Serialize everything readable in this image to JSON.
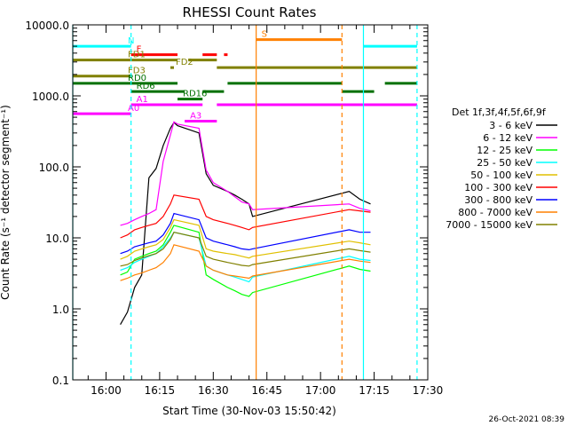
{
  "chart_data": {
    "type": "line",
    "title": "RHESSI Count Rates",
    "xlabel": "Start Time (30-Nov-03 15:50:42)",
    "ylabel": "Count Rate (s⁻¹ detector segment⁻¹)",
    "yscale": "log",
    "ylim": [
      0.1,
      10000
    ],
    "xlim": [
      "15:50:42",
      "17:30:00"
    ],
    "x_ticks": [
      "16:00",
      "16:15",
      "16:30",
      "16:45",
      "17:00",
      "17:15",
      "17:30"
    ],
    "y_ticks": [
      "0.1",
      "1.0",
      "10.0",
      "100.0",
      "1000.0",
      "10000.0"
    ],
    "grid": false,
    "legend_title": "Det 1f,3f,4f,5f,6f,9f",
    "legend_position": "right",
    "series": [
      {
        "name": "3 - 6 keV",
        "color": "#000000",
        "x": [
          "16:04",
          "16:06",
          "16:08",
          "16:10",
          "16:12",
          "16:14",
          "16:16",
          "16:18",
          "16:19",
          "16:20",
          "16:26",
          "16:28",
          "16:30",
          "16:34",
          "16:36",
          "16:38",
          "16:40",
          "16:41",
          "17:08",
          "17:11",
          "17:14"
        ],
        "y": [
          0.6,
          0.9,
          2.0,
          3.0,
          70,
          95,
          200,
          350,
          420,
          380,
          300,
          80,
          55,
          45,
          40,
          35,
          30,
          20,
          45,
          35,
          30
        ]
      },
      {
        "name": "6 - 12 keV",
        "color": "#ff00ff",
        "x": [
          "16:04",
          "16:06",
          "16:08",
          "16:10",
          "16:12",
          "16:14",
          "16:16",
          "16:18",
          "16:19",
          "16:20",
          "16:26",
          "16:28",
          "16:30",
          "16:34",
          "16:36",
          "16:38",
          "16:40",
          "16:41",
          "17:08",
          "17:11",
          "17:14"
        ],
        "y": [
          15,
          16,
          18,
          20,
          22,
          25,
          120,
          280,
          430,
          400,
          350,
          90,
          60,
          45,
          38,
          32,
          30,
          25,
          30,
          26,
          24
        ]
      },
      {
        "name": "12 - 25 keV",
        "color": "#00ff00",
        "x": [
          "16:04",
          "16:06",
          "16:08",
          "16:10",
          "16:12",
          "16:14",
          "16:16",
          "16:18",
          "16:19",
          "16:26",
          "16:28",
          "16:30",
          "16:34",
          "16:36",
          "16:38",
          "16:40",
          "16:41",
          "17:08",
          "17:11",
          "17:14"
        ],
        "y": [
          3.0,
          3.3,
          5.0,
          5.5,
          6.0,
          6.5,
          8.0,
          12,
          15,
          12,
          3.0,
          2.6,
          2.0,
          1.8,
          1.6,
          1.5,
          1.7,
          4.0,
          3.6,
          3.4
        ]
      },
      {
        "name": "25 - 50 keV",
        "color": "#00ffff",
        "x": [
          "16:04",
          "16:06",
          "16:08",
          "16:10",
          "16:12",
          "16:14",
          "16:16",
          "16:18",
          "16:19",
          "16:26",
          "16:28",
          "16:30",
          "16:34",
          "16:36",
          "16:38",
          "16:40",
          "16:41",
          "17:08",
          "17:11",
          "17:14"
        ],
        "y": [
          3.5,
          3.8,
          4.5,
          5.0,
          5.5,
          6.0,
          7.5,
          10,
          12,
          10,
          4.0,
          3.5,
          3.0,
          2.8,
          2.6,
          2.4,
          2.8,
          5.5,
          5.0,
          4.8
        ]
      },
      {
        "name": "50 - 100 keV",
        "color": "#e0c000",
        "x": [
          "16:04",
          "16:06",
          "16:08",
          "16:10",
          "16:12",
          "16:14",
          "16:16",
          "16:18",
          "16:19",
          "16:26",
          "16:28",
          "16:30",
          "16:34",
          "16:36",
          "16:38",
          "16:40",
          "16:41",
          "17:08",
          "17:11",
          "17:14"
        ],
        "y": [
          5.0,
          5.5,
          6.5,
          7.0,
          7.5,
          8.0,
          9.5,
          14,
          18,
          15,
          7.0,
          6.5,
          6.0,
          5.8,
          5.5,
          5.2,
          5.5,
          9.0,
          8.5,
          8.0
        ]
      },
      {
        "name": "100 - 300 keV",
        "color": "#ff0000",
        "x": [
          "16:04",
          "16:06",
          "16:08",
          "16:10",
          "16:12",
          "16:14",
          "16:16",
          "16:18",
          "16:19",
          "16:26",
          "16:28",
          "16:30",
          "16:34",
          "16:36",
          "16:38",
          "16:40",
          "16:41",
          "17:08",
          "17:11",
          "17:14"
        ],
        "y": [
          10,
          11,
          13,
          14,
          15,
          16,
          20,
          30,
          40,
          35,
          20,
          18,
          16,
          15,
          14,
          13,
          14,
          25,
          24,
          23
        ]
      },
      {
        "name": "300 - 800 keV",
        "color": "#0000ff",
        "x": [
          "16:04",
          "16:06",
          "16:08",
          "16:10",
          "16:12",
          "16:14",
          "16:16",
          "16:18",
          "16:19",
          "16:26",
          "16:28",
          "16:30",
          "16:34",
          "16:36",
          "16:38",
          "16:40",
          "16:41",
          "17:08",
          "17:11",
          "17:14"
        ],
        "y": [
          6.0,
          6.5,
          7.5,
          8.0,
          8.5,
          9.0,
          11,
          16,
          22,
          18,
          10,
          9.0,
          8.0,
          7.5,
          7.0,
          6.8,
          7.0,
          13,
          12,
          12
        ]
      },
      {
        "name": "800 - 7000 keV",
        "color": "#ff8000",
        "x": [
          "16:04",
          "16:06",
          "16:08",
          "16:10",
          "16:12",
          "16:14",
          "16:16",
          "16:18",
          "16:19",
          "16:26",
          "16:28",
          "16:30",
          "16:34",
          "16:36",
          "16:38",
          "16:40",
          "16:41",
          "17:08",
          "17:11",
          "17:14"
        ],
        "y": [
          2.5,
          2.7,
          3.0,
          3.2,
          3.5,
          3.8,
          4.5,
          6.0,
          8.0,
          6.5,
          4.0,
          3.5,
          3.0,
          2.9,
          2.8,
          2.7,
          2.9,
          5.0,
          4.7,
          4.5
        ]
      },
      {
        "name": "7000 - 15000 keV",
        "color": "#808000",
        "x": [
          "16:04",
          "16:06",
          "16:08",
          "16:10",
          "16:12",
          "16:14",
          "16:16",
          "16:18",
          "16:19",
          "16:26",
          "16:28",
          "16:30",
          "16:34",
          "16:36",
          "16:38",
          "16:40",
          "16:41",
          "17:08",
          "17:11",
          "17:14"
        ],
        "y": [
          4.0,
          4.2,
          4.8,
          5.2,
          5.6,
          6.0,
          7.0,
          9.5,
          12,
          10,
          5.5,
          5.0,
          4.5,
          4.3,
          4.1,
          4.0,
          4.2,
          7.0,
          6.6,
          6.3
        ]
      }
    ],
    "flag_bars": [
      {
        "label": "N",
        "color": "#00ffff",
        "level": 5000,
        "segments": [
          [
            "15:50:42",
            "16:07"
          ],
          [
            "17:12",
            "17:27"
          ]
        ]
      },
      {
        "label": "F",
        "color": "#ff0000",
        "level": 3800,
        "segments": [
          [
            "16:07",
            "16:20"
          ],
          [
            "16:27",
            "16:31"
          ],
          [
            "16:33",
            "16:34"
          ]
        ]
      },
      {
        "label": "S",
        "color": "#ff8000",
        "level": 6200,
        "segments": [
          [
            "16:42",
            "17:06"
          ]
        ]
      },
      {
        "label": "FD1",
        "color": "#808000",
        "level": 3200,
        "segments": [
          [
            "15:50:42",
            "16:20"
          ],
          [
            "16:23",
            "16:31"
          ]
        ]
      },
      {
        "label": "FD2",
        "color": "#808000",
        "level": 2500,
        "segments": [
          [
            "16:18",
            "16:19"
          ],
          [
            "16:31",
            "17:27"
          ]
        ]
      },
      {
        "label": "FD3",
        "color": "#808000",
        "level": 1900,
        "segments": [
          [
            "15:50:42",
            "16:07"
          ]
        ]
      },
      {
        "label": "RD0",
        "color": "#007000",
        "level": 1500,
        "segments": [
          [
            "15:50:42",
            "16:20"
          ],
          [
            "16:34",
            "17:06"
          ],
          [
            "17:18",
            "17:27"
          ]
        ]
      },
      {
        "label": "RD6",
        "color": "#007000",
        "level": 1150,
        "segments": [
          [
            "16:07",
            "16:22"
          ],
          [
            "16:27",
            "16:33"
          ],
          [
            "17:06",
            "17:15"
          ]
        ]
      },
      {
        "label": "RD16",
        "color": "#007000",
        "level": 900,
        "segments": [
          [
            "16:20",
            "16:27"
          ]
        ]
      },
      {
        "label": "A0",
        "color": "#ff00ff",
        "level": 560,
        "segments": [
          [
            "15:50:42",
            "16:07"
          ]
        ]
      },
      {
        "label": "A1",
        "color": "#ff00ff",
        "level": 750,
        "segments": [
          [
            "16:07",
            "16:27"
          ],
          [
            "16:31",
            "17:27"
          ]
        ]
      },
      {
        "label": "A3",
        "color": "#ff00ff",
        "level": 440,
        "segments": [
          [
            "16:22",
            "16:31"
          ]
        ]
      }
    ],
    "vlines": [
      {
        "x": "15:50:42",
        "color": "#00ffff",
        "style": "solid"
      },
      {
        "x": "16:07",
        "color": "#00ffff",
        "style": "dashed"
      },
      {
        "x": "16:42",
        "color": "#ff8000",
        "style": "solid"
      },
      {
        "x": "17:06",
        "color": "#ff8000",
        "style": "dashed"
      },
      {
        "x": "17:12",
        "color": "#00ffff",
        "style": "solid"
      },
      {
        "x": "17:27",
        "color": "#00ffff",
        "style": "dashed"
      }
    ],
    "footer": "26-Oct-2021 08:39"
  }
}
